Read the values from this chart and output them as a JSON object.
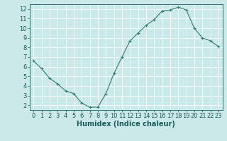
{
  "x": [
    0,
    1,
    2,
    3,
    4,
    5,
    6,
    7,
    8,
    9,
    10,
    11,
    12,
    13,
    14,
    15,
    16,
    17,
    18,
    19,
    20,
    21,
    22,
    23
  ],
  "y": [
    6.6,
    5.8,
    4.8,
    4.2,
    3.5,
    3.2,
    2.2,
    1.8,
    1.8,
    3.2,
    5.3,
    7.0,
    8.7,
    9.5,
    10.3,
    10.9,
    11.8,
    11.9,
    12.2,
    11.9,
    10.0,
    9.0,
    8.7,
    8.1
  ],
  "line_color": "#2e7d6e",
  "marker": "+",
  "marker_size": 3,
  "bg_color": "#cce9e9",
  "grid_color": "#ffffff",
  "xlabel": "Humidex (Indice chaleur)",
  "xlim": [
    -0.5,
    23.5
  ],
  "ylim": [
    1.5,
    12.5
  ],
  "yticks": [
    2,
    3,
    4,
    5,
    6,
    7,
    8,
    9,
    10,
    11,
    12
  ],
  "xticks": [
    0,
    1,
    2,
    3,
    4,
    5,
    6,
    7,
    8,
    9,
    10,
    11,
    12,
    13,
    14,
    15,
    16,
    17,
    18,
    19,
    20,
    21,
    22,
    23
  ],
  "xlabel_fontsize": 7,
  "tick_fontsize": 6,
  "label_color": "#1a5c5c",
  "linewidth": 0.8
}
